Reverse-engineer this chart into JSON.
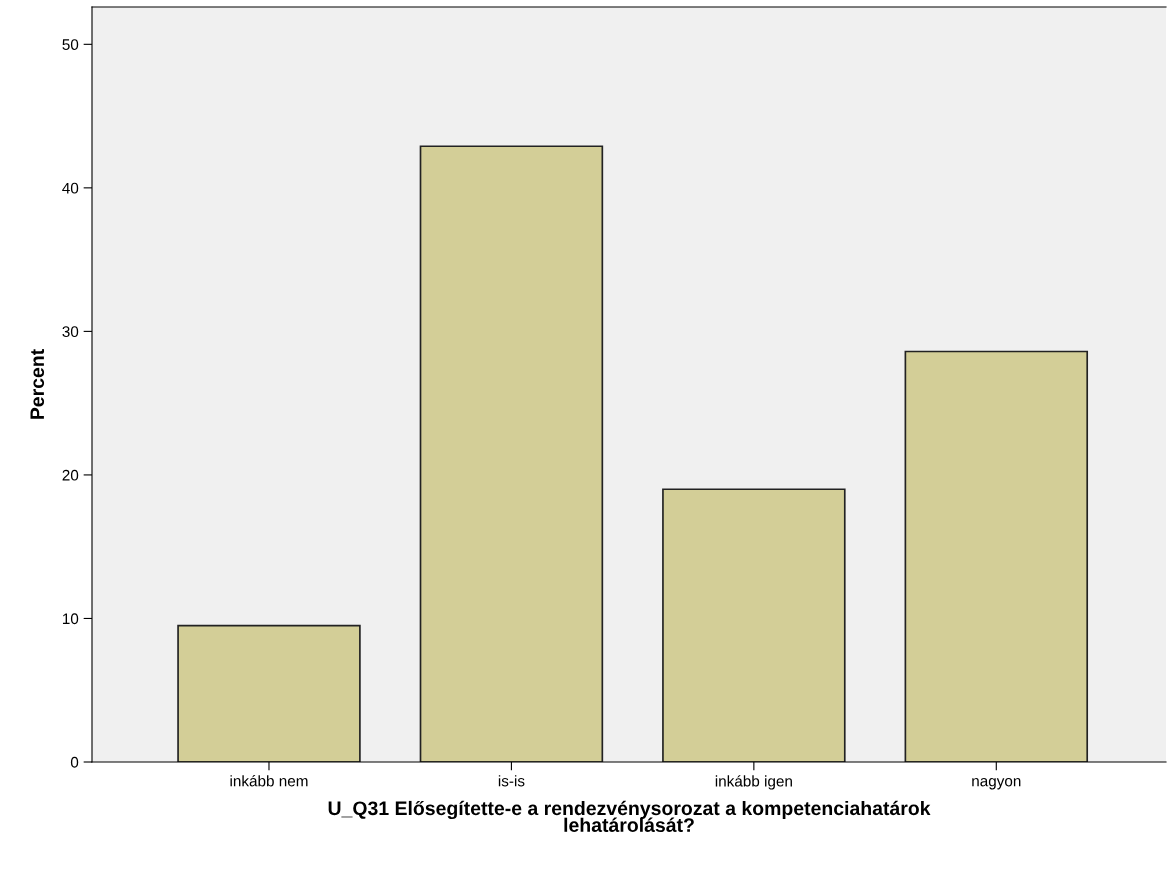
{
  "chart_data": {
    "type": "bar",
    "categories": [
      "inkább nem",
      "is-is",
      "inkább igen",
      "nagyon"
    ],
    "values": [
      9.5,
      42.9,
      19.0,
      28.6
    ],
    "color": "#d3ce97",
    "xlabel": "U_Q31 Elősegítette-e a rendezvénysorozat a kompetenciahatárok\nlehatárolását?",
    "ylabel": "Percent",
    "ylim": [
      0,
      52.6
    ],
    "yticks": [
      0,
      10,
      20,
      30,
      40,
      50
    ],
    "grid": false
  }
}
